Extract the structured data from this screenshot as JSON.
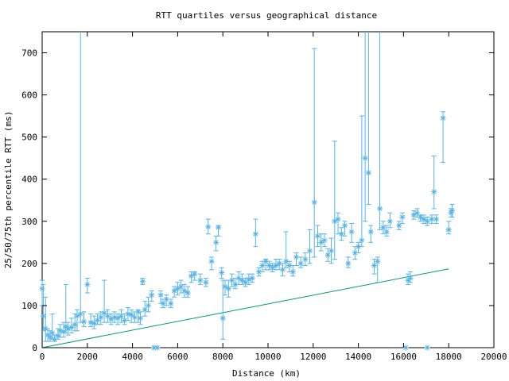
{
  "chart_data": {
    "type": "scatter",
    "title": "RTT quartiles versus geographical distance",
    "xlabel": "Distance (km)",
    "ylabel": "25/50/75th percentile RTT (ms)",
    "xlim": [
      0,
      20000
    ],
    "ylim": [
      0,
      750
    ],
    "x_ticks": [
      0,
      2000,
      4000,
      6000,
      8000,
      10000,
      12000,
      14000,
      16000,
      18000,
      20000
    ],
    "y_ticks": [
      0,
      100,
      200,
      300,
      400,
      500,
      600,
      700
    ],
    "grid": false,
    "colors": {
      "points": "#56b4e9",
      "fit_line": "#009e73"
    },
    "series": [
      {
        "type": "errorbar",
        "points": [
          [
            0,
            140,
            100,
            160
          ],
          [
            50,
            75,
            40,
            150
          ],
          [
            150,
            45,
            15,
            120
          ],
          [
            250,
            30,
            15,
            45
          ],
          [
            350,
            25,
            15,
            40
          ],
          [
            450,
            35,
            20,
            80
          ],
          [
            550,
            20,
            15,
            30
          ],
          [
            700,
            28,
            20,
            45
          ],
          [
            800,
            40,
            25,
            55
          ],
          [
            950,
            38,
            25,
            60
          ],
          [
            1050,
            50,
            35,
            150
          ],
          [
            1150,
            45,
            30,
            60
          ],
          [
            1300,
            48,
            35,
            70
          ],
          [
            1450,
            55,
            40,
            80
          ],
          [
            1550,
            75,
            40,
            90
          ],
          [
            1700,
            80,
            60,
            750
          ],
          [
            1850,
            62,
            50,
            85
          ],
          [
            2000,
            150,
            130,
            165
          ],
          [
            2150,
            60,
            50,
            80
          ],
          [
            2300,
            58,
            45,
            75
          ],
          [
            2450,
            65,
            55,
            80
          ],
          [
            2600,
            72,
            55,
            85
          ],
          [
            2750,
            82,
            60,
            160
          ],
          [
            2900,
            75,
            60,
            90
          ],
          [
            3050,
            68,
            55,
            80
          ],
          [
            3200,
            72,
            60,
            85
          ],
          [
            3350,
            70,
            55,
            80
          ],
          [
            3500,
            75,
            60,
            90
          ],
          [
            3650,
            65,
            55,
            80
          ],
          [
            3800,
            80,
            65,
            95
          ],
          [
            3950,
            78,
            60,
            90
          ],
          [
            4100,
            72,
            60,
            85
          ],
          [
            4250,
            85,
            60,
            90
          ],
          [
            4350,
            70,
            55,
            85
          ],
          [
            4450,
            157,
            150,
            165
          ],
          [
            4550,
            90,
            75,
            110
          ],
          [
            4700,
            100,
            85,
            120
          ],
          [
            4850,
            125,
            110,
            135
          ],
          [
            4950,
            0,
            0,
            0
          ],
          [
            5100,
            0,
            0,
            0
          ],
          [
            5250,
            125,
            105,
            135
          ],
          [
            5350,
            105,
            95,
            115
          ],
          [
            5500,
            115,
            100,
            125
          ],
          [
            5700,
            105,
            95,
            115
          ],
          [
            5850,
            135,
            120,
            145
          ],
          [
            6000,
            140,
            125,
            155
          ],
          [
            6150,
            145,
            130,
            160
          ],
          [
            6300,
            135,
            120,
            150
          ],
          [
            6450,
            130,
            120,
            145
          ],
          [
            6600,
            170,
            155,
            180
          ],
          [
            6750,
            175,
            160,
            180
          ],
          [
            7000,
            160,
            150,
            175
          ],
          [
            7250,
            155,
            145,
            165
          ],
          [
            7350,
            287,
            270,
            305
          ],
          [
            7500,
            205,
            185,
            215
          ],
          [
            7700,
            250,
            230,
            265
          ],
          [
            7800,
            285,
            265,
            290
          ],
          [
            7950,
            178,
            165,
            190
          ],
          [
            8000,
            70,
            20,
            160
          ],
          [
            8100,
            145,
            125,
            160
          ],
          [
            8250,
            140,
            120,
            160
          ],
          [
            8400,
            160,
            145,
            175
          ],
          [
            8550,
            150,
            140,
            165
          ],
          [
            8700,
            165,
            150,
            180
          ],
          [
            8850,
            160,
            150,
            175
          ],
          [
            9000,
            155,
            145,
            165
          ],
          [
            9150,
            162,
            150,
            175
          ],
          [
            9300,
            165,
            155,
            175
          ],
          [
            9450,
            270,
            240,
            305
          ],
          [
            9600,
            180,
            170,
            190
          ],
          [
            9750,
            195,
            180,
            205
          ],
          [
            9900,
            205,
            185,
            210
          ],
          [
            10050,
            195,
            185,
            205
          ],
          [
            10200,
            190,
            180,
            200
          ],
          [
            10350,
            195,
            185,
            210
          ],
          [
            10500,
            200,
            185,
            210
          ],
          [
            10650,
            185,
            170,
            200
          ],
          [
            10800,
            205,
            190,
            275
          ],
          [
            10950,
            195,
            180,
            205
          ],
          [
            11100,
            180,
            170,
            195
          ],
          [
            11250,
            215,
            195,
            225
          ],
          [
            11450,
            200,
            190,
            215
          ],
          [
            11650,
            210,
            195,
            225
          ],
          [
            11850,
            230,
            200,
            280
          ],
          [
            12050,
            345,
            215,
            710
          ],
          [
            12200,
            265,
            240,
            290
          ],
          [
            12350,
            250,
            230,
            270
          ],
          [
            12500,
            255,
            240,
            270
          ],
          [
            12650,
            220,
            205,
            235
          ],
          [
            12800,
            230,
            200,
            260
          ],
          [
            12950,
            300,
            210,
            490
          ],
          [
            13100,
            305,
            270,
            320
          ],
          [
            13250,
            270,
            255,
            285
          ],
          [
            13400,
            290,
            265,
            300
          ],
          [
            13550,
            200,
            190,
            215
          ],
          [
            13700,
            275,
            250,
            295
          ],
          [
            13850,
            225,
            210,
            240
          ],
          [
            14000,
            240,
            225,
            250
          ],
          [
            14150,
            255,
            240,
            550
          ],
          [
            14300,
            450,
            300,
            750
          ],
          [
            14450,
            415,
            340,
            750
          ],
          [
            14550,
            275,
            250,
            290
          ],
          [
            14700,
            195,
            175,
            210
          ],
          [
            14850,
            205,
            155,
            215
          ],
          [
            14950,
            330,
            280,
            750
          ],
          [
            15100,
            285,
            270,
            300
          ],
          [
            15250,
            275,
            265,
            290
          ],
          [
            15400,
            300,
            285,
            320
          ],
          [
            15800,
            290,
            280,
            300
          ],
          [
            15950,
            310,
            295,
            320
          ],
          [
            16100,
            0,
            0,
            0
          ],
          [
            16200,
            160,
            150,
            175
          ],
          [
            16300,
            165,
            155,
            180
          ],
          [
            16450,
            315,
            305,
            325
          ],
          [
            16600,
            320,
            310,
            330
          ],
          [
            16750,
            310,
            300,
            315
          ],
          [
            16900,
            305,
            295,
            315
          ],
          [
            17050,
            300,
            290,
            310
          ],
          [
            17050,
            0,
            0,
            0
          ],
          [
            17250,
            305,
            295,
            315
          ],
          [
            17350,
            370,
            330,
            455
          ],
          [
            17450,
            305,
            295,
            315
          ],
          [
            17750,
            545,
            440,
            560
          ],
          [
            18000,
            280,
            270,
            300
          ],
          [
            18100,
            320,
            310,
            330
          ],
          [
            18150,
            325,
            310,
            340
          ]
        ]
      },
      {
        "type": "line",
        "points": [
          [
            0,
            0
          ],
          [
            18000,
            187
          ]
        ]
      }
    ]
  }
}
